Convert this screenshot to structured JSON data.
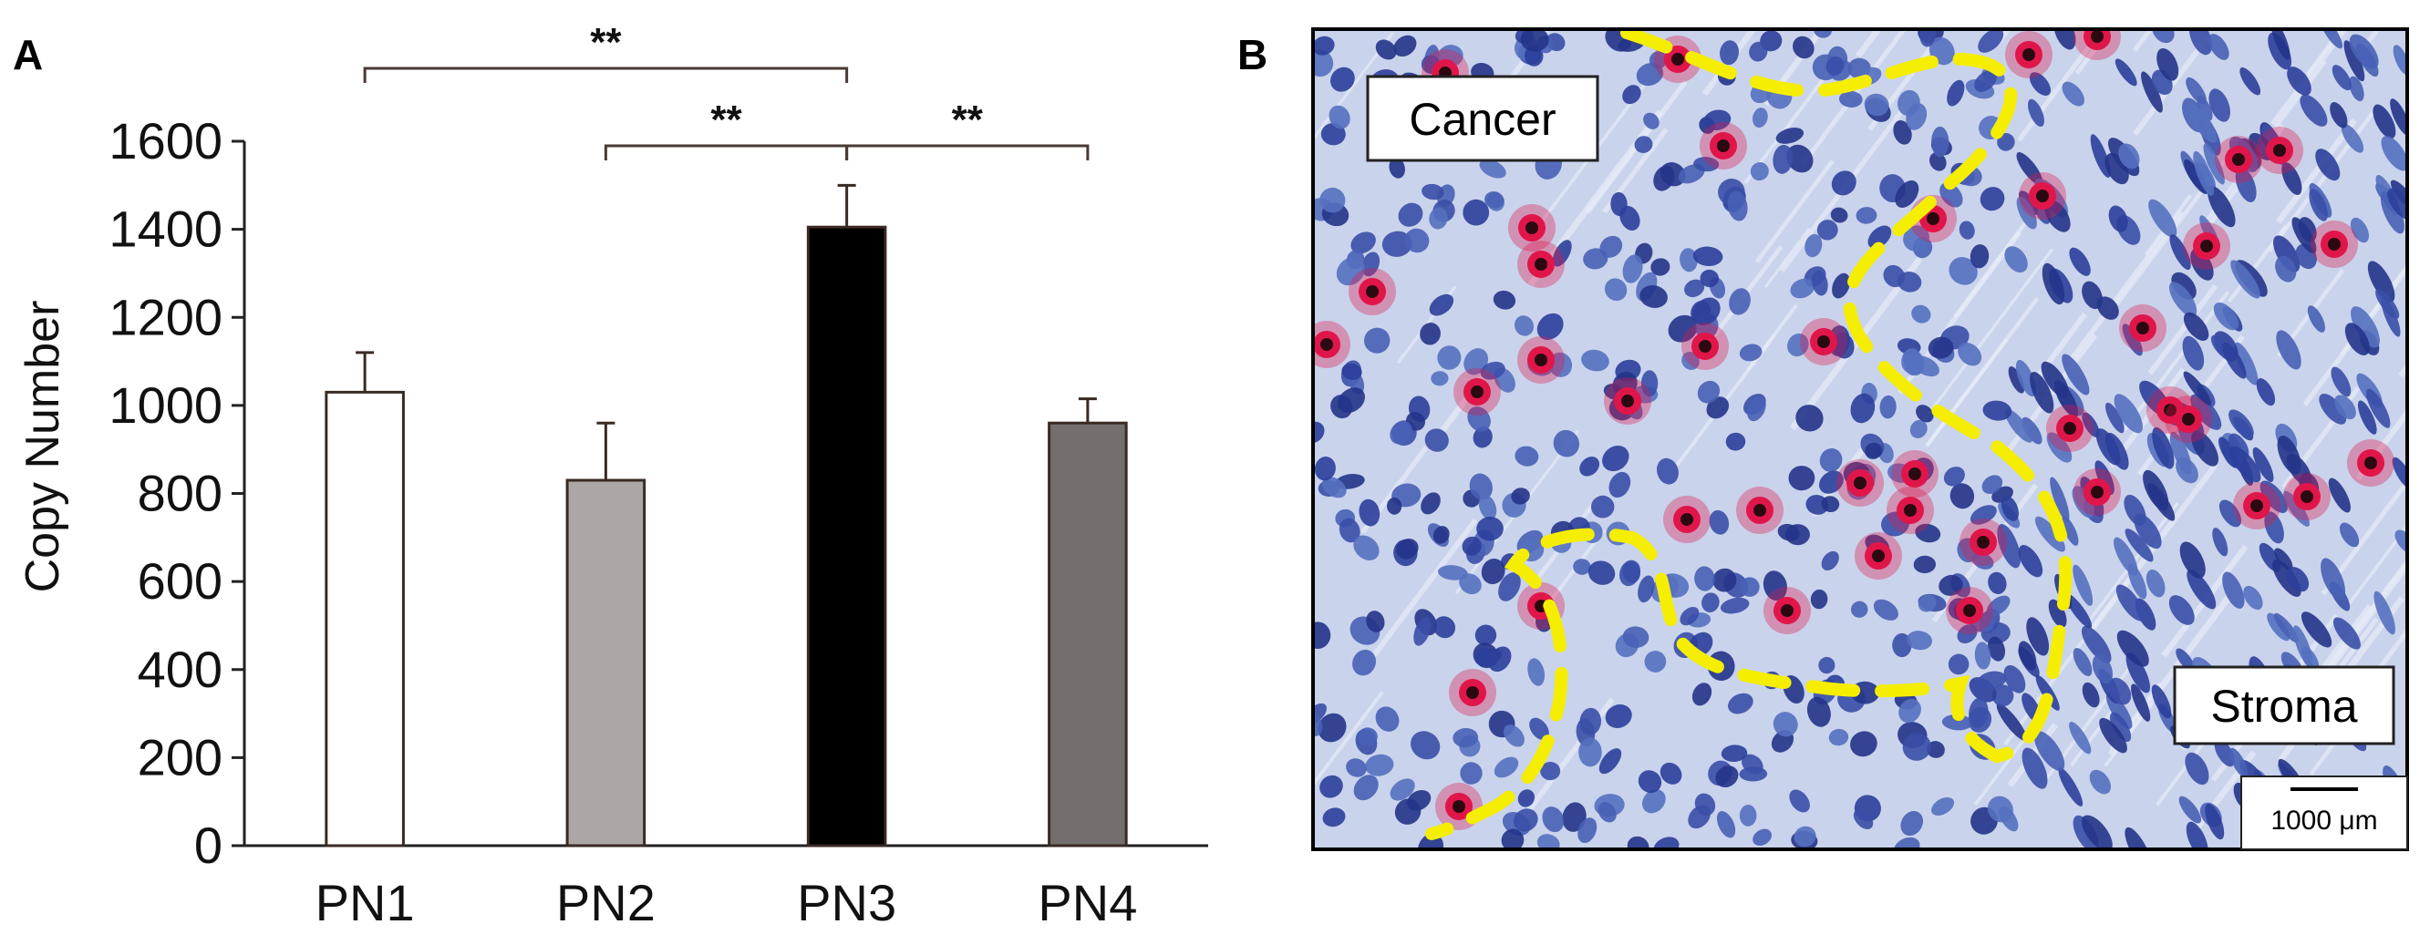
{
  "panels": {
    "a_letter": "A",
    "b_letter": "B"
  },
  "chart_data": {
    "type": "bar",
    "title": "",
    "xlabel": "",
    "ylabel": "Copy Number",
    "ylim": [
      0,
      1600
    ],
    "yticks": [
      0,
      200,
      400,
      600,
      800,
      1000,
      1200,
      1400,
      1600
    ],
    "categories": [
      "PN1",
      "PN2",
      "PN3",
      "PN4"
    ],
    "values": [
      1030,
      830,
      1405,
      960
    ],
    "errors": [
      90,
      130,
      95,
      55
    ],
    "colors": [
      "#ffffff",
      "#aca7a6",
      "#000000",
      "#746f6e"
    ],
    "significance": [
      {
        "from": "PN1",
        "to": "PN3",
        "label": "**"
      },
      {
        "from": "PN2",
        "to": "PN3",
        "label": "**"
      },
      {
        "from": "PN3",
        "to": "PN4",
        "label": "**"
      }
    ]
  },
  "micrograph": {
    "label_cancer": "Cancer",
    "label_stroma": "Stroma",
    "scale_bar": "1000 μm",
    "colors": {
      "nuclei": "#3a4fa8",
      "background": "#c9d3ec",
      "marker": "#e0164a",
      "boundary": "#f5ee00"
    }
  }
}
